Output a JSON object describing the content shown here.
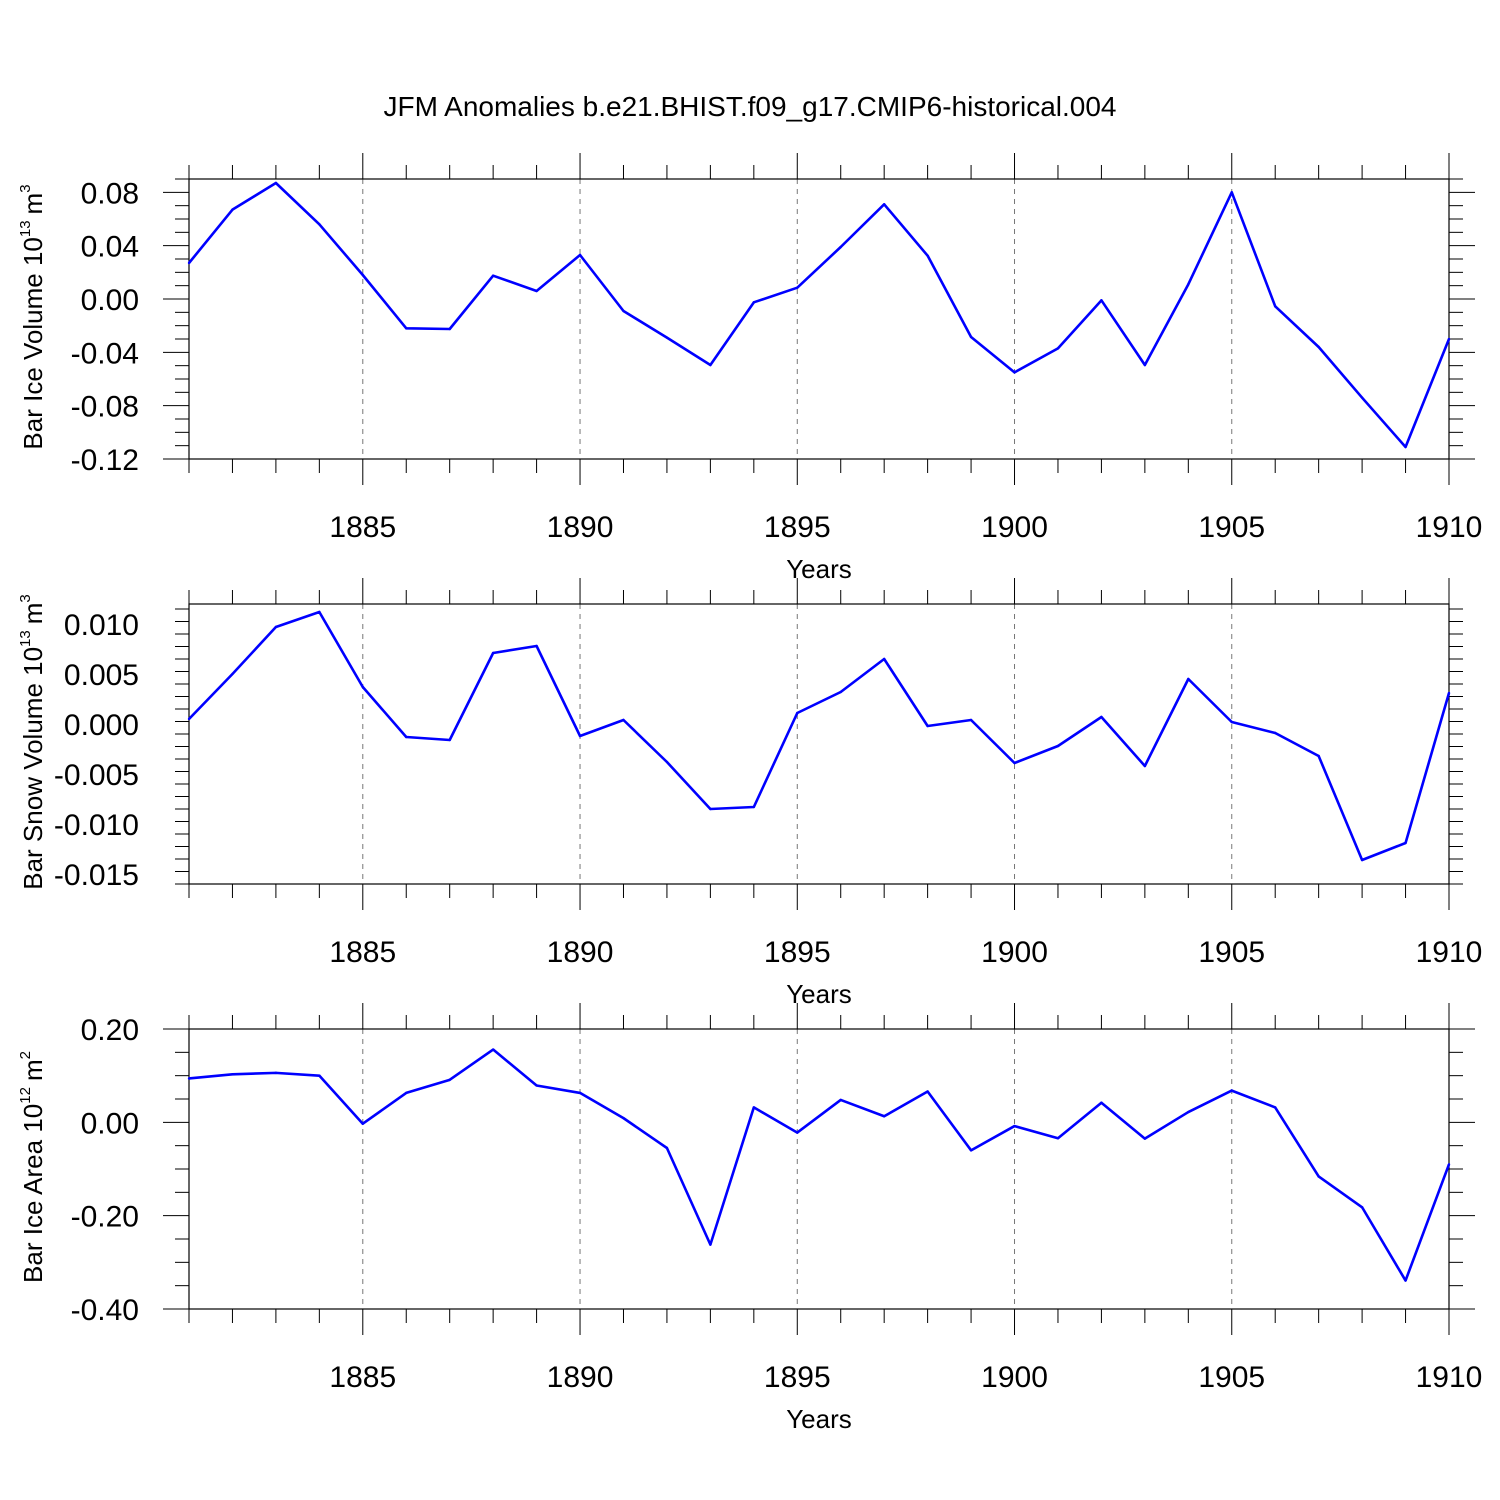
{
  "figure": {
    "title": "JFM Anomalies b.e21.BHIST.f09_g17.CMIP6-historical.004",
    "line_color": "#0000ff",
    "grid_style": "dashed vertical lines at major x ticks"
  },
  "chart_data": [
    {
      "type": "line",
      "name": "ice-volume",
      "ylabel": "Bar Ice Volume 10",
      "ylabel_exp": "13",
      "ylabel_unit": "m",
      "ylabel_unit_exp": "3",
      "xlabel": "Years",
      "xlim": [
        1881,
        1910
      ],
      "ylim": [
        -0.12,
        0.09
      ],
      "xticks": [
        1885,
        1890,
        1895,
        1900,
        1905,
        1910
      ],
      "xtick_labels": [
        "1885",
        "1890",
        "1895",
        "1900",
        "1905",
        "1910"
      ],
      "yticks": [
        -0.12,
        -0.08,
        -0.04,
        0.0,
        0.04,
        0.08
      ],
      "ytick_labels": [
        "-0.12",
        "-0.08",
        "-0.04",
        "0.00",
        "0.04",
        "0.08"
      ],
      "grid_x": true,
      "x": [
        1881,
        1882,
        1883,
        1884,
        1885,
        1886,
        1887,
        1888,
        1889,
        1890,
        1891,
        1892,
        1893,
        1894,
        1895,
        1896,
        1897,
        1898,
        1899,
        1900,
        1901,
        1902,
        1903,
        1904,
        1905,
        1906,
        1907,
        1908,
        1909,
        1910
      ],
      "values": [
        0.027,
        0.067,
        0.087,
        0.056,
        0.018,
        -0.022,
        -0.0225,
        0.0175,
        0.006,
        0.033,
        -0.009,
        -0.029,
        -0.0495,
        -0.0025,
        0.0085,
        0.039,
        0.071,
        0.0325,
        -0.0285,
        -0.055,
        -0.037,
        -0.001,
        -0.0495,
        0.011,
        0.08,
        -0.0055,
        -0.036,
        -0.074,
        -0.111,
        -0.03
      ]
    },
    {
      "type": "line",
      "name": "snow-volume",
      "ylabel": "Bar Snow Volume 10",
      "ylabel_exp": "13",
      "ylabel_unit": "m",
      "ylabel_unit_exp": "3",
      "xlabel": "Years",
      "xlim": [
        1881,
        1910
      ],
      "ylim": [
        -0.016,
        0.012
      ],
      "xticks": [
        1885,
        1890,
        1895,
        1900,
        1905,
        1910
      ],
      "xtick_labels": [
        "1885",
        "1890",
        "1895",
        "1900",
        "1905",
        "1910"
      ],
      "yticks": [
        -0.015,
        -0.01,
        -0.005,
        0.0,
        0.005,
        0.01
      ],
      "ytick_labels": [
        "-0.015",
        "-0.010",
        "-0.005",
        "0.000",
        "0.005",
        "0.010"
      ],
      "grid_x": true,
      "x": [
        1881,
        1882,
        1883,
        1884,
        1885,
        1886,
        1887,
        1888,
        1889,
        1890,
        1891,
        1892,
        1893,
        1894,
        1895,
        1896,
        1897,
        1898,
        1899,
        1900,
        1901,
        1902,
        1903,
        1904,
        1905,
        1906,
        1907,
        1908,
        1909,
        1910
      ],
      "values": [
        0.0005,
        0.005,
        0.0097,
        0.0112,
        0.0037,
        -0.0013,
        -0.0016,
        0.0071,
        0.0078,
        -0.0012,
        0.0004,
        -0.0038,
        -0.0085,
        -0.0083,
        0.0011,
        0.0032,
        0.0065,
        -0.0002,
        0.0004,
        -0.0039,
        -0.0022,
        0.0007,
        -0.0042,
        0.0045,
        0.0002,
        -0.0009,
        -0.0032,
        -0.0136,
        -0.0119,
        0.0031
      ]
    },
    {
      "type": "line",
      "name": "ice-area",
      "ylabel": "Bar Ice Area 10",
      "ylabel_exp": "12",
      "ylabel_unit": "m",
      "ylabel_unit_exp": "2",
      "xlabel": "Years",
      "xlim": [
        1881,
        1910
      ],
      "ylim": [
        -0.4,
        0.2
      ],
      "xticks": [
        1885,
        1890,
        1895,
        1900,
        1905,
        1910
      ],
      "xtick_labels": [
        "1885",
        "1890",
        "1895",
        "1900",
        "1905",
        "1910"
      ],
      "yticks": [
        -0.4,
        -0.2,
        0.0,
        0.2
      ],
      "ytick_labels": [
        "-0.40",
        "-0.20",
        "0.00",
        "0.20"
      ],
      "grid_x": true,
      "x": [
        1881,
        1882,
        1883,
        1884,
        1885,
        1886,
        1887,
        1888,
        1889,
        1890,
        1891,
        1892,
        1893,
        1894,
        1895,
        1896,
        1897,
        1898,
        1899,
        1900,
        1901,
        1902,
        1903,
        1904,
        1905,
        1906,
        1907,
        1908,
        1909,
        1910
      ],
      "values": [
        0.094,
        0.103,
        0.106,
        0.1,
        -0.003,
        0.063,
        0.091,
        0.156,
        0.079,
        0.063,
        0.009,
        -0.055,
        -0.262,
        0.032,
        -0.022,
        0.048,
        0.013,
        0.066,
        -0.06,
        -0.008,
        -0.034,
        0.042,
        -0.035,
        0.022,
        0.068,
        0.032,
        -0.116,
        -0.182,
        -0.339,
        -0.09
      ]
    }
  ]
}
